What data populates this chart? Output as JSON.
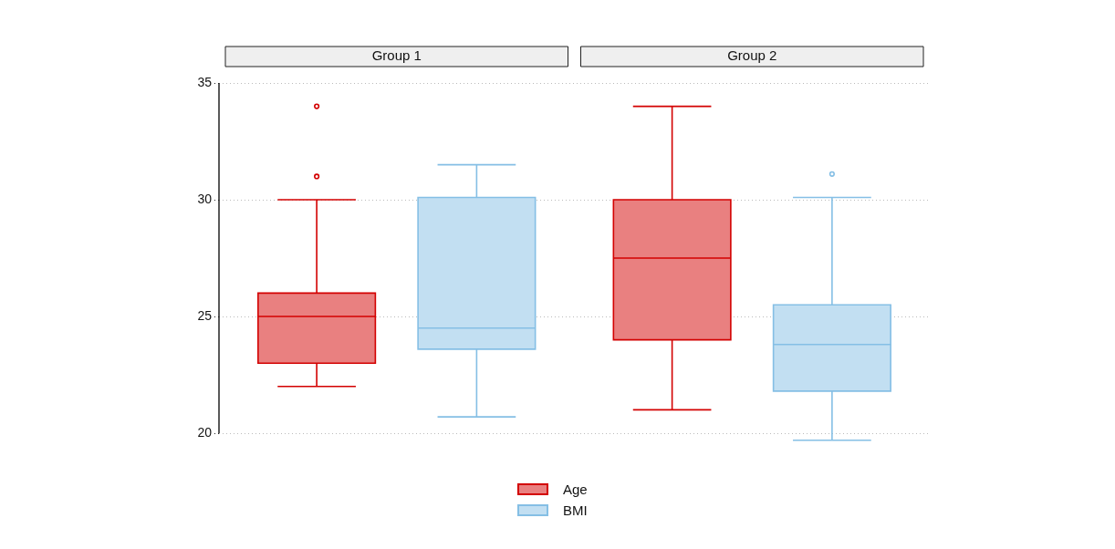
{
  "chart_data": {
    "type": "box",
    "categories": [
      "Group 1",
      "Group 2"
    ],
    "ylim": [
      20,
      35
    ],
    "yticks": [
      20,
      25,
      30,
      35
    ],
    "grid": "y",
    "legend": "bottom",
    "series": [
      {
        "name": "Age",
        "color": "#e98080",
        "boxes": [
          {
            "low": 22,
            "q1": 23,
            "median": 25,
            "q3": 26,
            "high": 30,
            "outliers": [
              31,
              34
            ]
          },
          {
            "low": 21,
            "q1": 24,
            "median": 27.5,
            "q3": 30,
            "high": 34
          }
        ]
      },
      {
        "name": "BMI",
        "color": "#c2dff2",
        "boxes": [
          {
            "low": 20.7,
            "q1": 23.6,
            "median": 24.5,
            "q3": 30.1,
            "high": 31.5
          },
          {
            "low": 19.7,
            "q1": 21.8,
            "median": 23.8,
            "q3": 25.5,
            "high": 30.1,
            "outliers": [
              31.1
            ]
          }
        ]
      }
    ]
  }
}
